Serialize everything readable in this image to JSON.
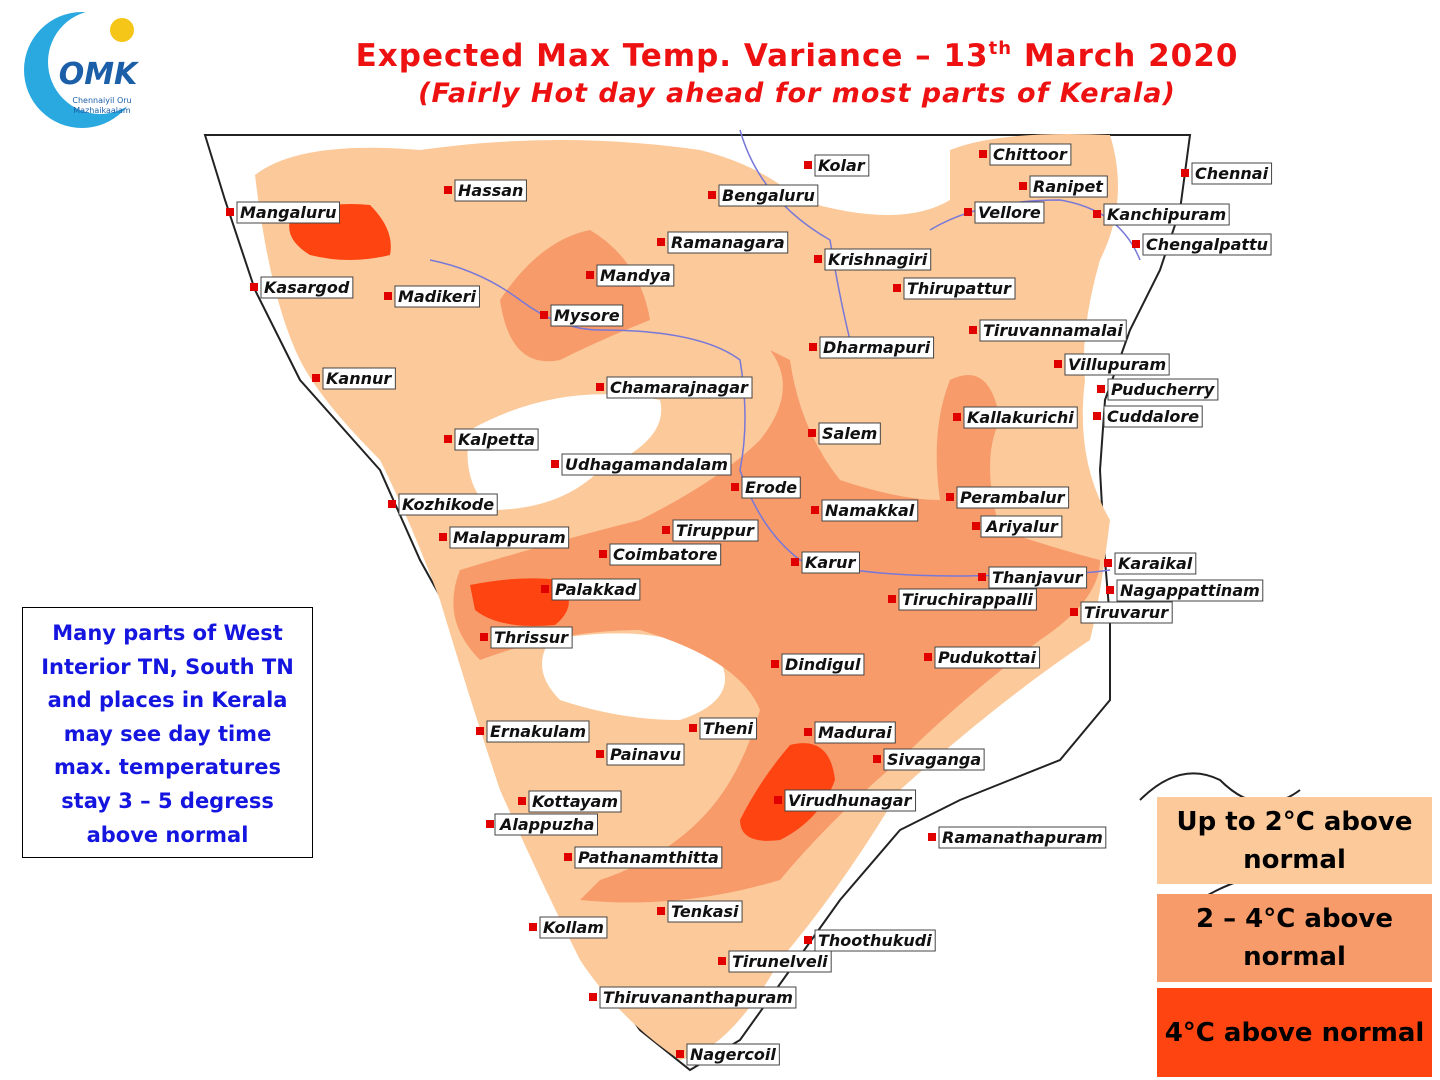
{
  "header": {
    "title_start": "Expected Max Temp. Variance – 13",
    "title_sup": "th",
    "title_end": " March 2020",
    "subtitle": "(Fairly Hot day ahead for most parts of Kerala)"
  },
  "logo": {
    "mark": "OMK",
    "tagline_1": "Chennaiyil Oru",
    "tagline_2": "Mazhaikaalam"
  },
  "note": {
    "lines": [
      "Many parts of West",
      "Interior TN, South TN",
      "and  places in Kerala",
      "may see day time",
      "max. temperatures",
      "stay 3 – 5 degress",
      "above normal"
    ]
  },
  "legend": [
    {
      "lines": [
        "Up to 2°C above",
        "normal"
      ],
      "color": "#fcc99a"
    },
    {
      "lines": [
        "2 – 4°C above",
        "normal"
      ],
      "color": "#f79b6b"
    },
    {
      "lines": [
        "4°C above normal"
      ],
      "color": "#fe4411"
    }
  ],
  "cities": [
    "Mangaluru",
    "Hassan",
    "Bengaluru",
    "Kolar",
    "Chittoor",
    "Ranipet",
    "Chennai",
    "Vellore",
    "Kanchipuram",
    "Chengalpattu",
    "Ramanagara",
    "Krishnagiri",
    "Mandya",
    "Kasargod",
    "Madikeri",
    "Thirupattur",
    "Mysore",
    "Tiruvannamalai",
    "Dharmapuri",
    "Villupuram",
    "Kannur",
    "Chamarajnagar",
    "Puducherry",
    "Kallakurichi",
    "Cuddalore",
    "Kalpetta",
    "Salem",
    "Udhagamandalam",
    "Erode",
    "Perambalur",
    "Kozhikode",
    "Namakkal",
    "Tiruppur",
    "Ariyalur",
    "Malappuram",
    "Coimbatore",
    "Karur",
    "Karaikal",
    "Thanjavur",
    "Nagappattinam",
    "Palakkad",
    "Tiruchirappalli",
    "Tiruvarur",
    "Thrissur",
    "Pudukottai",
    "Dindigul",
    "Ernakulam",
    "Theni",
    "Madurai",
    "Painavu",
    "Sivaganga",
    "Kottayam",
    "Virudhunagar",
    "Alappuzha",
    "Ramanathapuram",
    "Pathanamthitta",
    "Tenkasi",
    "Kollam",
    "Thoothukudi",
    "Tirunelveli",
    "Thiruvananthapuram",
    "Nagercoil"
  ]
}
